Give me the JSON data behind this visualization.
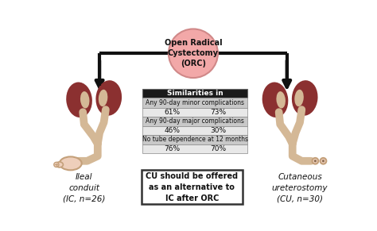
{
  "title_circle": "Open Radical\nCystectomy\n(ORC)",
  "circle_color": "#f2a8a8",
  "circle_edge_color": "#d08888",
  "table_header": "Similarities in",
  "table_header_bg": "#1a1a1a",
  "table_header_color": "#ffffff",
  "table_rows": [
    {
      "label": "Any 90-day minor complications",
      "v1": "61%",
      "v2": "73%"
    },
    {
      "label": "Any 90-day major complications",
      "v1": "46%",
      "v2": "30%"
    },
    {
      "label": "No tube dependence at 12 months",
      "v1": "76%",
      "v2": "70%"
    }
  ],
  "bottom_box_text": "CU should be offered\nas an alternative to\nIC after ORC",
  "left_label": "Ileal\nconduit\n(IC, n=26)",
  "right_label": "Cutaneous\nureterostomy\n(CU, n=30)",
  "kidney_color": "#8b3030",
  "hilum_color": "#d4b896",
  "tube_color": "#d4b896",
  "tube_outline": "#c4a07a",
  "bg_color": "#ffffff",
  "arrow_color": "#111111",
  "label_row_bg": "#c8c8c8",
  "value_row_bg": "#e8e8e8"
}
